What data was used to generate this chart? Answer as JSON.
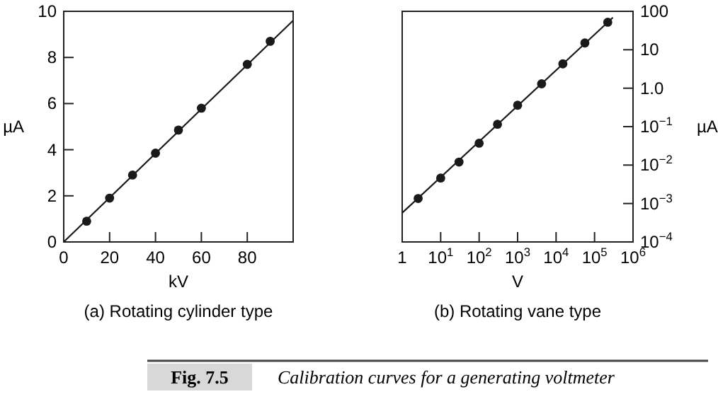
{
  "chart_data": [
    {
      "type": "scatter",
      "xlabel": "kV",
      "ylabel": "µA",
      "xlim": [
        0,
        100
      ],
      "xticks": [
        0,
        20,
        40,
        60,
        80
      ],
      "ylim": [
        0,
        10
      ],
      "yticks": [
        0,
        2,
        4,
        6,
        8,
        10
      ],
      "grid": false,
      "marker": "circle",
      "annotations": [
        "(a) Rotating cylinder type",
        "Fig. 7.5",
        "Calibration curves for a generating voltmeter"
      ],
      "series": [
        {
          "color": "#1a1a1a",
          "x": [
            10,
            20,
            30,
            40,
            50,
            60,
            80,
            90
          ],
          "values": [
            0.9,
            1.9,
            2.9,
            3.85,
            4.85,
            5.8,
            7.7,
            8.7
          ]
        },
        {
          "type": "line",
          "color": "#1a1a1a",
          "marker": "none",
          "line_style": "solid",
          "x": [
            0,
            100
          ],
          "values": [
            0,
            9.6
          ]
        }
      ]
    },
    {
      "type": "scatter",
      "xlabel": "V",
      "ylabel": "µA",
      "log": "xy",
      "xlim": [
        1,
        1000000
      ],
      "xticks": [
        1,
        {
          "value": 10,
          "label": "10$^{1}$"
        },
        {
          "value": 100,
          "label": "10$^{2}$"
        },
        {
          "value": 1000,
          "label": "10$^{3}$"
        },
        {
          "value": 10000,
          "label": "10$^{4}$"
        },
        {
          "value": 100000,
          "label": "10$^{5}$"
        },
        {
          "value": 1000000,
          "label": "10$^{6}$"
        }
      ],
      "ylim": [
        0.0001,
        100
      ],
      "yticks": [
        {
          "value": 0.0001,
          "label": "10$^{−4}$"
        },
        {
          "value": 0.001,
          "label": "10$^{−3}$"
        },
        {
          "value": 0.01,
          "label": "10$^{−2}$"
        },
        {
          "value": 0.1,
          "label": "10$^{−1}$"
        },
        {
          "value": 1,
          "label": "1.0"
        },
        10,
        100
      ],
      "grid": false,
      "marker": "circle",
      "annotations": [
        "(b) Rotating vane type"
      ],
      "series": [
        {
          "color": "#1a1a1a",
          "x": [
            2.6,
            10,
            30,
            100,
            300,
            1000,
            4200,
            15000,
            56000,
            220000
          ],
          "values": [
            0.00135,
            0.0046,
            0.012,
            0.037,
            0.115,
            0.36,
            1.3,
            4.3,
            15,
            52
          ]
        },
        {
          "type": "line",
          "color": "#1a1a1a",
          "marker": "none",
          "line_style": "solid",
          "x": [
            1,
            300000
          ],
          "values": [
            0.00057,
            69
          ]
        }
      ]
    }
  ]
}
